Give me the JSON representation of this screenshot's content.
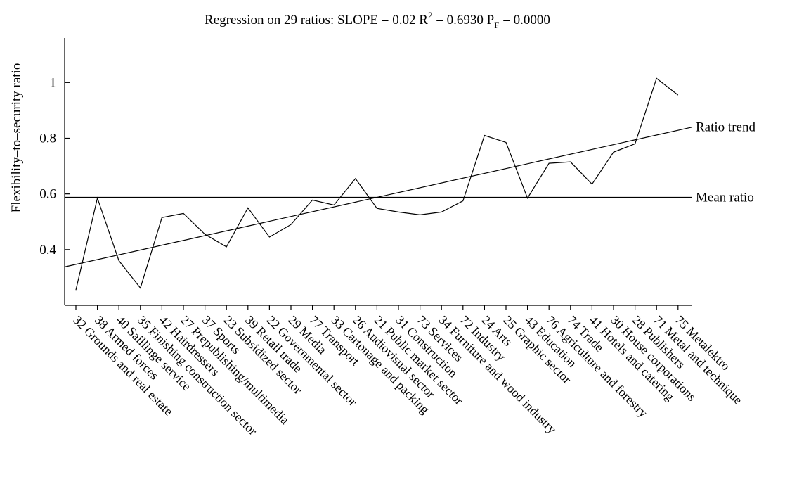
{
  "chart_data": {
    "type": "line",
    "title": {
      "prefix": "Regression on 29  ratios: SLOPE = 0.02   R",
      "r_sup": "2",
      "middle": " = 0.6930   P",
      "p_sub": "F",
      "suffix": " = 0.0000"
    },
    "ylabel": "Flexibility–to–security ratio",
    "xlabel": "",
    "ylim": [
      0.2,
      1.16
    ],
    "yticks": [
      0.4,
      0.6,
      0.8,
      1
    ],
    "ytick_labels": [
      "0.4",
      "0.6",
      "0.8",
      "1"
    ],
    "grid": false,
    "categories": [
      "32 Grounds and real estate",
      "38 Armed forces",
      "40 Saillinge service",
      "35 Finishing construction sector",
      "42 Hairdressers",
      "27 Prepublishing/multimedia",
      "37 Sports",
      "23 Subsidized sector",
      "39 Retail trade",
      "22 Governmental sector",
      "29 Media",
      "77 Transport",
      "33 Cartonage and packing",
      "26 Audiovisual sector",
      "21 Public market sector",
      "31 Construction",
      "73 Services",
      "34 Furniture and wood industry",
      "72 Industry",
      "24 Arts",
      "25 Graphic sector",
      "43 Education",
      "76 Agriculture and forestry",
      "74 Trade",
      "41 Hotels and catering",
      "30 House corporations",
      "28 Publishers",
      "71 Metal and technique",
      "75 Metalektro"
    ],
    "series": [
      {
        "values": [
          0.255,
          0.585,
          0.36,
          0.262,
          0.515,
          0.53,
          0.455,
          0.41,
          0.55,
          0.445,
          0.49,
          0.578,
          0.56,
          0.655,
          0.548,
          0.535,
          0.525,
          0.535,
          0.575,
          0.81,
          0.785,
          0.585,
          0.71,
          0.715,
          0.635,
          0.75,
          0.78,
          1.015,
          0.955
        ]
      }
    ],
    "reference_lines": [
      {
        "label": "Mean ratio",
        "type": "horizontal",
        "value": 0.588
      },
      {
        "label": "Ratio trend",
        "type": "trend",
        "start": 0.338,
        "end": 0.84
      }
    ]
  }
}
